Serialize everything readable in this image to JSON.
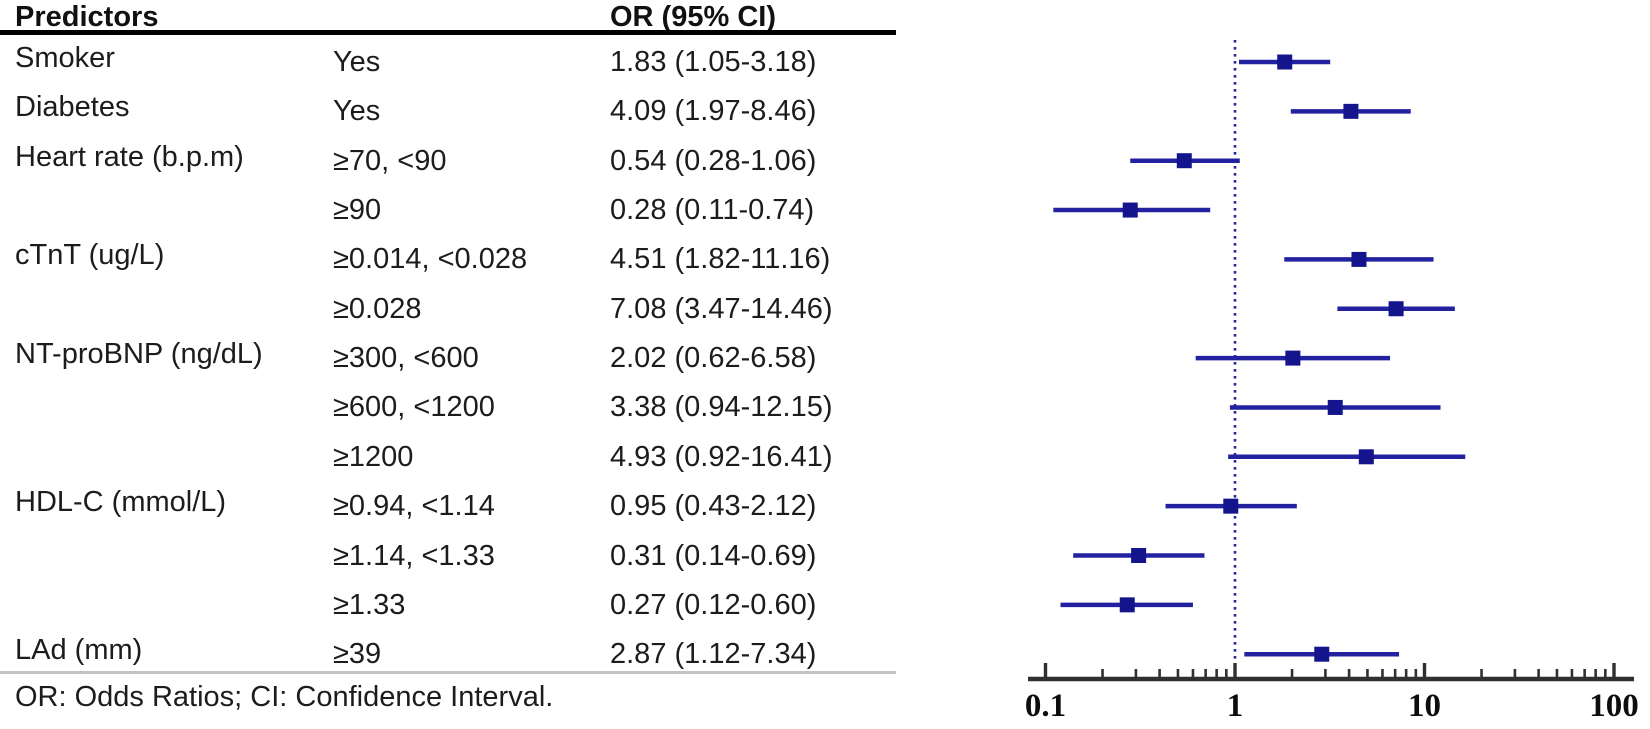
{
  "table": {
    "header": {
      "predictors": "Predictors",
      "or_ci": "OR (95% CI)"
    },
    "footer": "OR: Odds Ratios; CI: Confidence Interval.",
    "rows": [
      {
        "predictor": "Smoker",
        "category": "Yes",
        "or_ci": "1.83 (1.05-3.18)"
      },
      {
        "predictor": "Diabetes",
        "category": "Yes",
        "or_ci": "4.09 (1.97-8.46)"
      },
      {
        "predictor": "Heart rate (b.p.m)",
        "category": "≥70, <90",
        "or_ci": "0.54 (0.28-1.06)"
      },
      {
        "predictor": "",
        "category": "≥90",
        "or_ci": "0.28 (0.11-0.74)"
      },
      {
        "predictor": "cTnT (ug/L)",
        "category": "≥0.014, <0.028",
        "or_ci": "4.51 (1.82-11.16)"
      },
      {
        "predictor": "",
        "category": "≥0.028",
        "or_ci": "7.08 (3.47-14.46)"
      },
      {
        "predictor": "NT-proBNP (ng/dL)",
        "category": "≥300, <600",
        "or_ci": "2.02 (0.62-6.58)"
      },
      {
        "predictor": "",
        "category": "≥600, <1200",
        "or_ci": "3.38 (0.94-12.15)"
      },
      {
        "predictor": "",
        "category": "≥1200",
        "or_ci": "4.93 (0.92-16.41)"
      },
      {
        "predictor": "HDL-C (mmol/L)",
        "category": "≥0.94, <1.14",
        "or_ci": "0.95 (0.43-2.12)"
      },
      {
        "predictor": "",
        "category": "≥1.14, <1.33",
        "or_ci": "0.31 (0.14-0.69)"
      },
      {
        "predictor": "",
        "category": "≥1.33",
        "or_ci": "0.27 (0.12-0.60)"
      },
      {
        "predictor": "LAd (mm)",
        "category": "≥39",
        "or_ci": "2.87 (1.12-7.34)"
      }
    ]
  },
  "chart_data": {
    "type": "scatter",
    "subtype": "forest-plot",
    "x_scale": "log10",
    "xlim": [
      0.08,
      128
    ],
    "reference_line": 1,
    "x_ticks": [
      0.1,
      1,
      10,
      100
    ],
    "x_tick_labels": [
      "0.1",
      "1",
      "10",
      "100"
    ],
    "grid": false,
    "legend": false,
    "points": [
      {
        "label": "Smoker: Yes",
        "or": 1.83,
        "ci_low": 1.05,
        "ci_high": 3.18
      },
      {
        "label": "Diabetes: Yes",
        "or": 4.09,
        "ci_low": 1.97,
        "ci_high": 8.46
      },
      {
        "label": "Heart rate ≥70, <90",
        "or": 0.54,
        "ci_low": 0.28,
        "ci_high": 1.06
      },
      {
        "label": "Heart rate ≥90",
        "or": 0.28,
        "ci_low": 0.11,
        "ci_high": 0.74
      },
      {
        "label": "cTnT ≥0.014, <0.028",
        "or": 4.51,
        "ci_low": 1.82,
        "ci_high": 11.16
      },
      {
        "label": "cTnT ≥0.028",
        "or": 7.08,
        "ci_low": 3.47,
        "ci_high": 14.46
      },
      {
        "label": "NT-proBNP ≥300, <600",
        "or": 2.02,
        "ci_low": 0.62,
        "ci_high": 6.58
      },
      {
        "label": "NT-proBNP ≥600, <1200",
        "or": 3.38,
        "ci_low": 0.94,
        "ci_high": 12.15
      },
      {
        "label": "NT-proBNP ≥1200",
        "or": 4.93,
        "ci_low": 0.92,
        "ci_high": 16.41
      },
      {
        "label": "HDL-C ≥0.94, <1.14",
        "or": 0.95,
        "ci_low": 0.43,
        "ci_high": 2.12
      },
      {
        "label": "HDL-C ≥1.14, <1.33",
        "or": 0.31,
        "ci_low": 0.14,
        "ci_high": 0.69
      },
      {
        "label": "HDL-C ≥1.33",
        "or": 0.27,
        "ci_low": 0.12,
        "ci_high": 0.6
      },
      {
        "label": "LAd ≥39",
        "or": 2.87,
        "ci_low": 1.12,
        "ci_high": 7.34
      }
    ],
    "colors": {
      "marker": "#14148c",
      "ci_line": "#2222a0",
      "reference_line": "#26269a",
      "axis": "#303030",
      "tick_label": "#0d0d0d"
    }
  }
}
